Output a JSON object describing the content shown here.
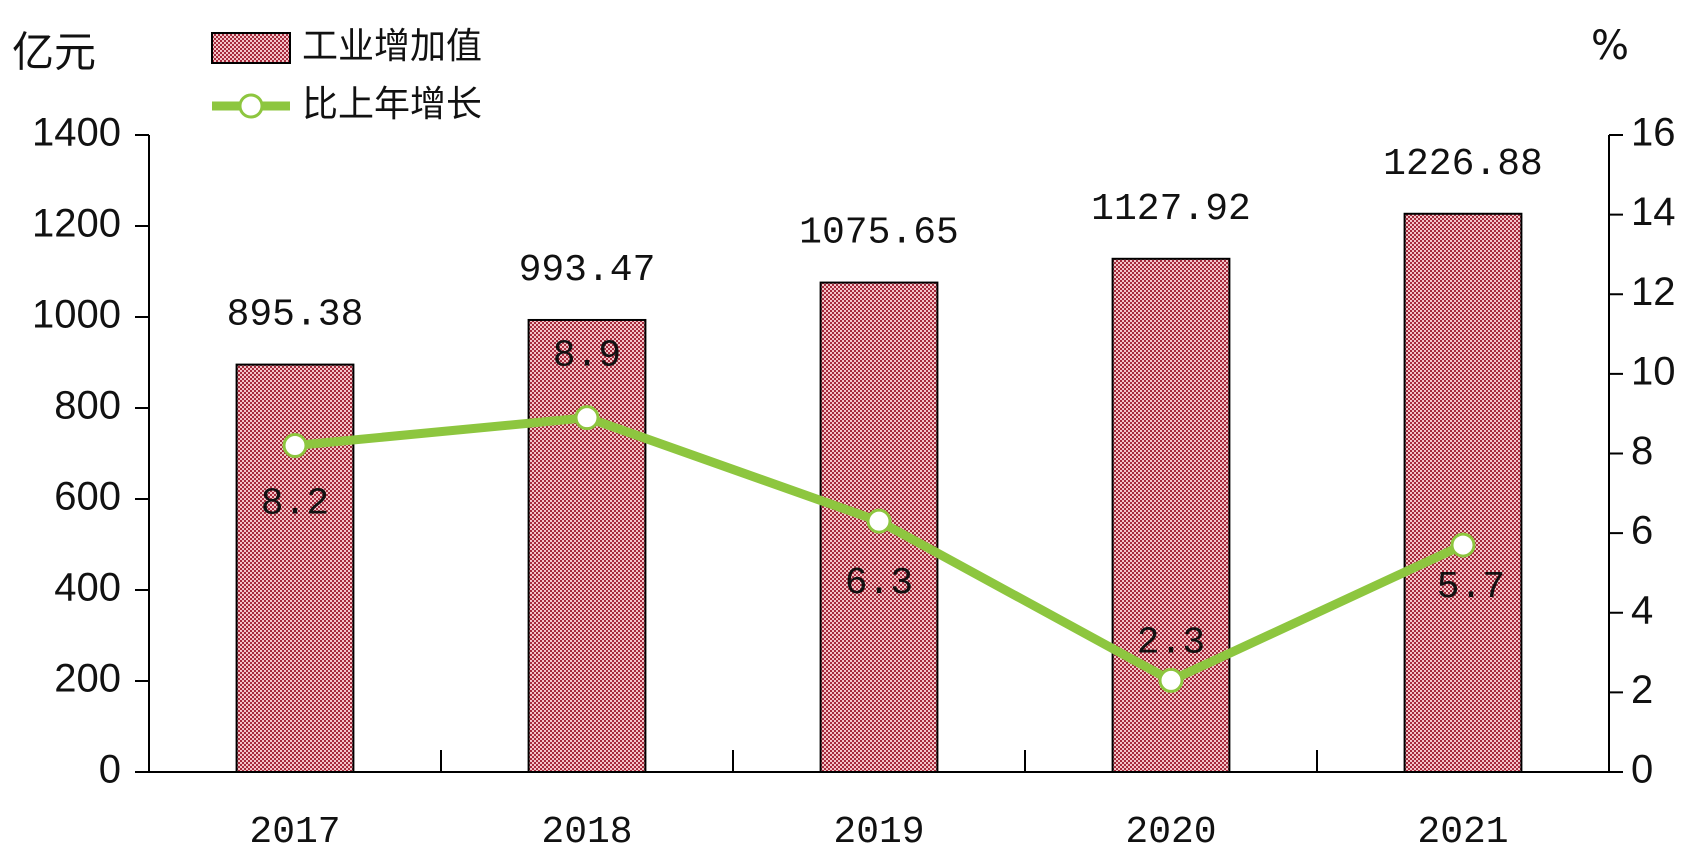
{
  "chart_data": {
    "type": "bar",
    "y_axis_label": "亿元",
    "y2_axis_label": "%",
    "categories": [
      "2017",
      "2018",
      "2019",
      "2020",
      "2021"
    ],
    "series": [
      {
        "name": "工业增加值",
        "color": "#a52a3c",
        "type": "bar",
        "values": [
          895.38,
          993.47,
          1075.65,
          1127.92,
          1226.88
        ]
      },
      {
        "name": "比上年增长",
        "color": "#8dc63f",
        "type": "line",
        "axis": "y2",
        "values": [
          8.2,
          8.9,
          6.3,
          2.3,
          5.7
        ]
      }
    ],
    "ylim": [
      0,
      1400
    ],
    "yticks": [
      0,
      200,
      400,
      600,
      800,
      1000,
      1200,
      1400
    ],
    "y2lim": [
      0,
      16
    ],
    "y2ticks": [
      0,
      2,
      4,
      6,
      8,
      10,
      12,
      14,
      16
    ],
    "grid": false
  }
}
